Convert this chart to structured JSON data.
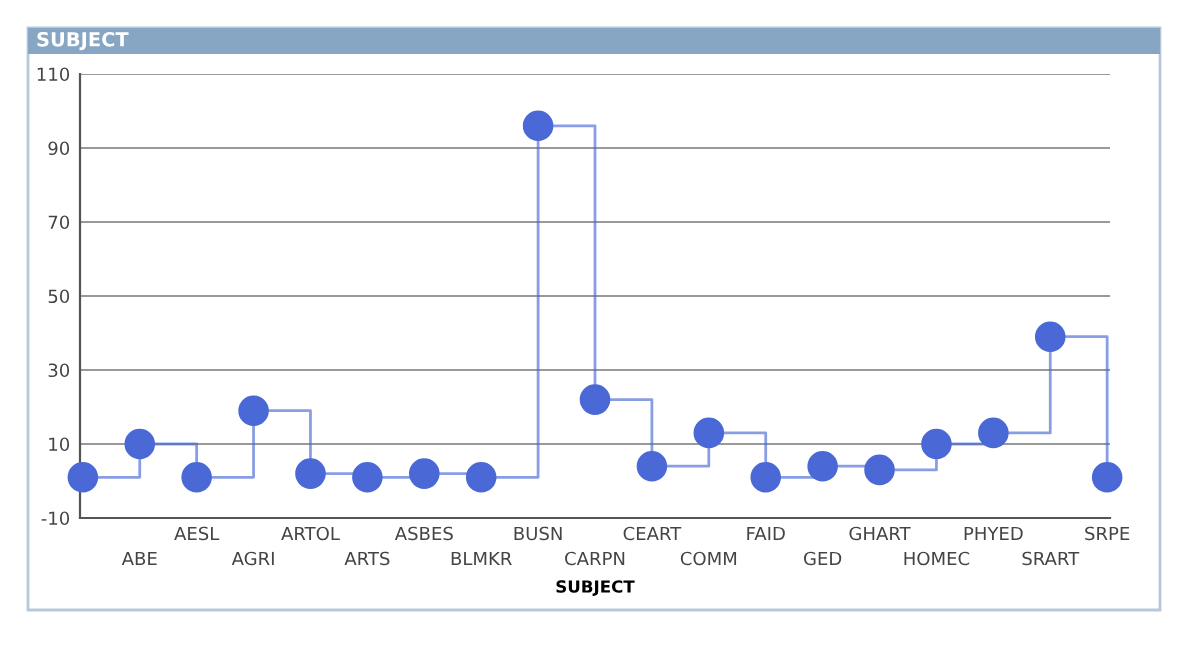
{
  "chart_data": {
    "type": "step",
    "title": "SUBJECT",
    "xlabel": "SUBJECT",
    "categories": [
      null,
      "ABE",
      "AESL",
      "AGRI",
      "ARTOL",
      "ARTS",
      "ASBES",
      "BLMKR",
      "BUSN",
      "CARPN",
      "CEART",
      "COMM",
      "FAID",
      "GED",
      "GHART",
      "HOMEC",
      "PHYED",
      "SRART",
      "SRPE"
    ],
    "series": [
      {
        "color": "#4a68d6",
        "values": [
          1,
          10,
          1,
          19,
          2,
          1,
          2,
          1,
          96,
          22,
          4,
          13,
          1,
          4,
          3,
          10,
          13,
          39,
          1
        ]
      }
    ],
    "ylim": [
      -10,
      110
    ],
    "yticks": [
      -10,
      10,
      30,
      50,
      70,
      90,
      110
    ],
    "grid": "y",
    "marker": "circle",
    "line_style": "solid"
  }
}
